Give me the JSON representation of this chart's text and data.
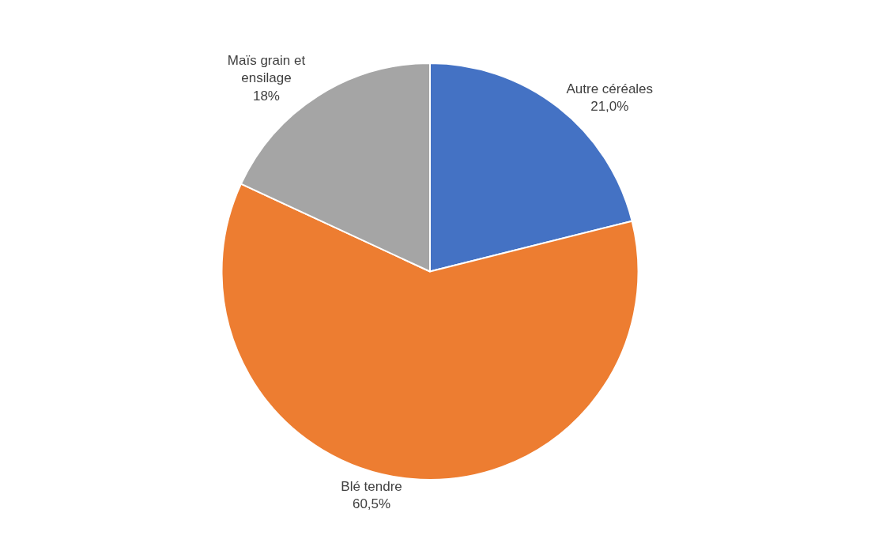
{
  "chart_data": {
    "type": "pie",
    "categories": [
      "Autre céréales",
      "Blé tendre",
      "Maïs grain et ensilage"
    ],
    "values": [
      21.0,
      60.5,
      18
    ],
    "value_labels": [
      "21,0%",
      "60,5%",
      "18%"
    ],
    "colors": [
      "#4472c4",
      "#ed7d31",
      "#a5a5a5"
    ],
    "legend": false
  }
}
